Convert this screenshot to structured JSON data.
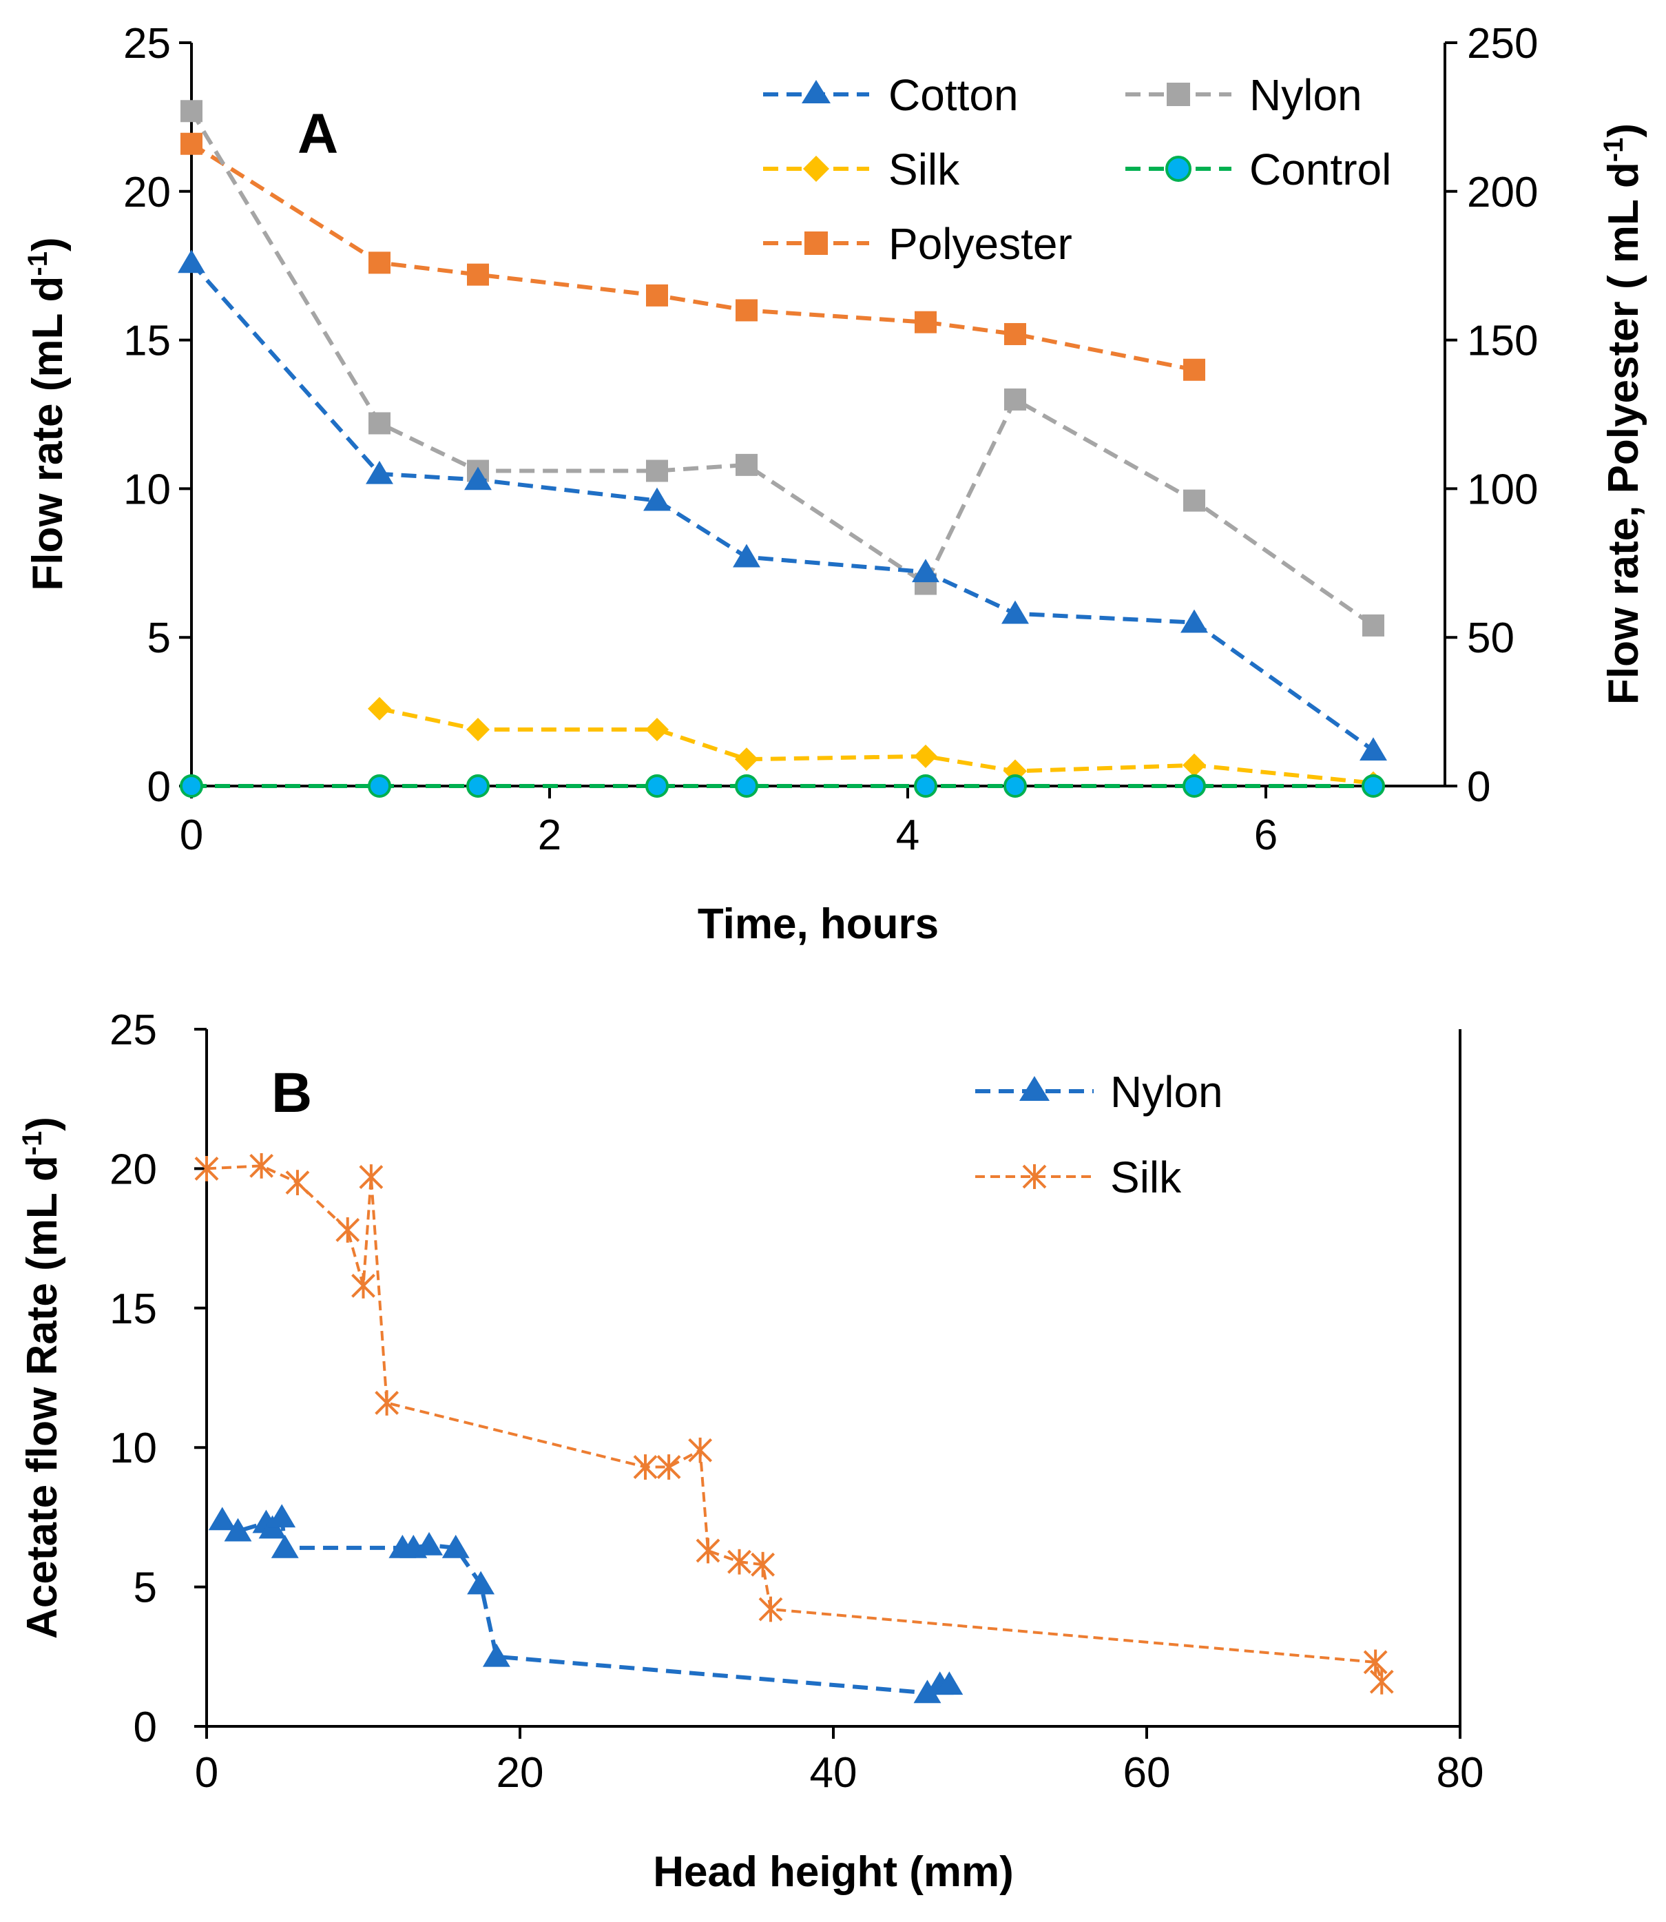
{
  "chart_data": [
    {
      "type": "line",
      "panel_label": "A",
      "xlabel": "Time, hours",
      "ylabel": "Flow rate (mL d",
      "ylabel_sup": "-1",
      "ylabel_close": ")",
      "y2label": "Flow rate, Polyester ( mL d",
      "y2label_sup": "-1",
      "y2label_close": ")",
      "xlim": [
        0,
        7
      ],
      "ylim": [
        0,
        25
      ],
      "y2lim": [
        0,
        250
      ],
      "xticks": [
        "0",
        "2",
        "4",
        "6"
      ],
      "yticks": [
        "0",
        "5",
        "10",
        "15",
        "20",
        "25"
      ],
      "y2ticks": [
        "0",
        "50",
        "100",
        "150",
        "200",
        "250"
      ],
      "legend_position": "top-right",
      "series": [
        {
          "name": "Cotton",
          "color": "#1f6fc5",
          "marker": "triangle",
          "axis": "left",
          "x": [
            0,
            1.05,
            1.6,
            2.6,
            3.1,
            4.1,
            4.6,
            5.6,
            6.6
          ],
          "y": [
            17.6,
            10.5,
            10.3,
            9.6,
            7.7,
            7.2,
            5.8,
            5.5,
            1.2
          ]
        },
        {
          "name": "Nylon",
          "color": "#a5a5a5",
          "marker": "square",
          "axis": "left",
          "x": [
            0,
            1.05,
            1.6,
            2.6,
            3.1,
            4.1,
            4.6,
            5.6,
            6.6
          ],
          "y": [
            22.7,
            12.2,
            10.6,
            10.6,
            10.8,
            6.8,
            13.0,
            9.6,
            5.4
          ]
        },
        {
          "name": "Silk",
          "color": "#ffc000",
          "marker": "diamond",
          "axis": "left",
          "x": [
            1.05,
            1.6,
            2.6,
            3.1,
            4.1,
            4.6,
            5.6,
            6.6
          ],
          "y": [
            2.6,
            1.9,
            1.9,
            0.9,
            1.0,
            0.5,
            0.7,
            0.1
          ]
        },
        {
          "name": "Control",
          "color": "#00b050",
          "marker": "circle",
          "fill": "#00b0f0",
          "axis": "left",
          "x": [
            0,
            1.05,
            1.6,
            2.6,
            3.1,
            4.1,
            4.6,
            5.6,
            6.6
          ],
          "y": [
            0,
            0,
            0,
            0,
            0,
            0,
            0,
            0,
            0
          ]
        },
        {
          "name": "Polyester",
          "color": "#ed7d31",
          "marker": "square",
          "axis": "right",
          "x": [
            0,
            1.05,
            1.6,
            2.6,
            3.1,
            4.1,
            4.6,
            5.6
          ],
          "y": [
            216,
            176,
            172,
            165,
            160,
            156,
            152,
            140
          ]
        }
      ]
    },
    {
      "type": "line",
      "panel_label": "B",
      "xlabel": "Head height (mm)",
      "ylabel": "Acetate flow Rate (mL d",
      "ylabel_sup": "-1",
      "ylabel_close": ")",
      "xlim": [
        0,
        80
      ],
      "ylim": [
        0,
        25
      ],
      "xticks": [
        "0",
        "20",
        "40",
        "60",
        "80"
      ],
      "yticks": [
        "0",
        "5",
        "10",
        "15",
        "20",
        "25"
      ],
      "legend_position": "top-right",
      "series": [
        {
          "name": "Nylon",
          "color": "#1f6fc5",
          "marker": "triangle",
          "x": [
            1.0,
            2.0,
            3.8,
            4.2,
            4.8,
            5.0,
            12.5,
            13.2,
            14.2,
            15.9,
            17.5,
            18.5,
            46.0,
            46.8,
            47.4
          ],
          "y": [
            7.4,
            7.0,
            7.3,
            7.1,
            7.5,
            6.4,
            6.4,
            6.4,
            6.5,
            6.4,
            5.1,
            2.5,
            1.2,
            1.5,
            1.5
          ]
        },
        {
          "name": "Silk",
          "color": "#ed7d31",
          "marker": "star",
          "x": [
            0,
            3.5,
            5.8,
            9.0,
            10.0,
            10.5,
            11.5,
            28.0,
            29.5,
            31.5,
            32.0,
            34.0,
            35.5,
            36.0,
            74.6,
            75.0
          ],
          "y": [
            20.0,
            20.1,
            19.5,
            17.8,
            15.8,
            19.7,
            11.6,
            9.3,
            9.3,
            9.9,
            6.3,
            5.9,
            5.8,
            4.2,
            2.3,
            1.6
          ]
        }
      ]
    }
  ]
}
